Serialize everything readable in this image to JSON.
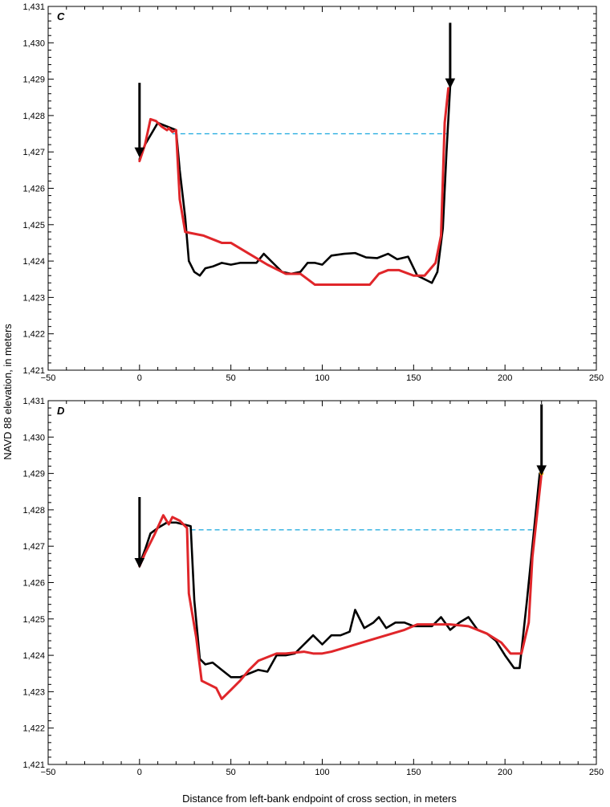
{
  "axis_titles": {
    "ylabel": "NAVD 88 elevation, in meters",
    "xlabel": "Distance from left-bank endpoint of cross section, in meters"
  },
  "colors": {
    "black_line": "#000000",
    "red_line": "#e0262a",
    "dashed_line": "#2aaee0",
    "point_marker": "#f0a500"
  },
  "chart_data": [
    {
      "type": "line",
      "panel_label": "C",
      "xlim": [
        -50,
        250
      ],
      "ylim": [
        1421,
        1431
      ],
      "x_ticks": [
        -50,
        0,
        50,
        100,
        150,
        200,
        250
      ],
      "x_tick_labels": [
        "−50",
        "0",
        "50",
        "100",
        "150",
        "200",
        "250"
      ],
      "y_ticks": [
        1421,
        1422,
        1423,
        1424,
        1425,
        1426,
        1427,
        1428,
        1429,
        1430,
        1431
      ],
      "y_tick_labels": [
        "1,421",
        "1,422",
        "1,423",
        "1,424",
        "1,425",
        "1,426",
        "1,427",
        "1,428",
        "1,429",
        "1,430",
        "1,431"
      ],
      "grid": false,
      "series": [
        {
          "color": "#000000",
          "points": [
            [
              0,
              1426.8
            ],
            [
              3,
              1427.2
            ],
            [
              10,
              1427.8
            ],
            [
              15,
              1427.7
            ],
            [
              20,
              1427.6
            ],
            [
              22,
              1426.5
            ],
            [
              25,
              1425.2
            ],
            [
              27,
              1424.0
            ],
            [
              30,
              1423.7
            ],
            [
              33,
              1423.6
            ],
            [
              36,
              1423.8
            ],
            [
              40,
              1423.85
            ],
            [
              45,
              1423.95
            ],
            [
              50,
              1423.9
            ],
            [
              55,
              1423.95
            ],
            [
              60,
              1423.95
            ],
            [
              64,
              1423.95
            ],
            [
              68,
              1424.2
            ],
            [
              73,
              1423.95
            ],
            [
              78,
              1423.7
            ],
            [
              83,
              1423.65
            ],
            [
              88,
              1423.7
            ],
            [
              92,
              1423.95
            ],
            [
              96,
              1423.95
            ],
            [
              100,
              1423.9
            ],
            [
              105,
              1424.15
            ],
            [
              112,
              1424.2
            ],
            [
              118,
              1424.22
            ],
            [
              124,
              1424.1
            ],
            [
              130,
              1424.08
            ],
            [
              136,
              1424.2
            ],
            [
              141,
              1424.05
            ],
            [
              147,
              1424.12
            ],
            [
              152,
              1423.6
            ],
            [
              158,
              1423.45
            ],
            [
              160,
              1423.4
            ],
            [
              163,
              1423.7
            ],
            [
              166,
              1424.9
            ],
            [
              168,
              1427.0
            ],
            [
              170,
              1428.8
            ]
          ]
        },
        {
          "color": "#e0262a",
          "points": [
            [
              0,
              1426.75
            ],
            [
              3,
              1427.2
            ],
            [
              6,
              1427.9
            ],
            [
              9,
              1427.85
            ],
            [
              12,
              1427.7
            ],
            [
              15,
              1427.6
            ],
            [
              16,
              1427.65
            ],
            [
              18,
              1427.55
            ],
            [
              20,
              1427.6
            ],
            [
              22,
              1425.7
            ],
            [
              25,
              1424.8
            ],
            [
              30,
              1424.75
            ],
            [
              35,
              1424.7
            ],
            [
              40,
              1424.6
            ],
            [
              45,
              1424.5
            ],
            [
              50,
              1424.5
            ],
            [
              60,
              1424.2
            ],
            [
              70,
              1423.9
            ],
            [
              80,
              1423.65
            ],
            [
              88,
              1423.65
            ],
            [
              96,
              1423.35
            ],
            [
              110,
              1423.35
            ],
            [
              126,
              1423.35
            ],
            [
              131,
              1423.65
            ],
            [
              136,
              1423.75
            ],
            [
              142,
              1423.75
            ],
            [
              150,
              1423.6
            ],
            [
              156,
              1423.6
            ],
            [
              162,
              1423.95
            ],
            [
              165,
              1424.7
            ],
            [
              167,
              1427.8
            ],
            [
              169,
              1428.75
            ]
          ]
        }
      ],
      "reference_lines": [
        {
          "style": "dashed",
          "color": "#2aaee0",
          "y": 1427.5,
          "x_range": [
            18,
            168
          ]
        }
      ],
      "arrows": [
        {
          "x": 0,
          "from_y": 1428.9,
          "to_y": 1426.9
        },
        {
          "x": 170,
          "from_y": 1430.55,
          "to_y": 1428.8
        }
      ]
    },
    {
      "type": "line",
      "panel_label": "D",
      "xlim": [
        -50,
        250
      ],
      "ylim": [
        1421,
        1431
      ],
      "x_ticks": [
        -50,
        0,
        50,
        100,
        150,
        200,
        250
      ],
      "x_tick_labels": [
        "−50",
        "0",
        "50",
        "100",
        "150",
        "200",
        "250"
      ],
      "y_ticks": [
        1421,
        1422,
        1423,
        1424,
        1425,
        1426,
        1427,
        1428,
        1429,
        1430,
        1431
      ],
      "y_tick_labels": [
        "1,421",
        "1,422",
        "1,423",
        "1,424",
        "1,425",
        "1,426",
        "1,427",
        "1,428",
        "1,429",
        "1,430",
        "1,431"
      ],
      "grid": false,
      "series": [
        {
          "color": "#000000",
          "points": [
            [
              0,
              1426.5
            ],
            [
              3,
              1426.9
            ],
            [
              6,
              1427.35
            ],
            [
              10,
              1427.5
            ],
            [
              15,
              1427.65
            ],
            [
              20,
              1427.65
            ],
            [
              28,
              1427.55
            ],
            [
              30,
              1425.5
            ],
            [
              33,
              1423.9
            ],
            [
              36,
              1423.75
            ],
            [
              40,
              1423.8
            ],
            [
              45,
              1423.6
            ],
            [
              50,
              1423.4
            ],
            [
              55,
              1423.4
            ],
            [
              60,
              1423.5
            ],
            [
              65,
              1423.6
            ],
            [
              70,
              1423.55
            ],
            [
              75,
              1424.0
            ],
            [
              80,
              1424.0
            ],
            [
              85,
              1424.05
            ],
            [
              90,
              1424.3
            ],
            [
              95,
              1424.55
            ],
            [
              100,
              1424.3
            ],
            [
              105,
              1424.55
            ],
            [
              110,
              1424.55
            ],
            [
              115,
              1424.65
            ],
            [
              118,
              1425.25
            ],
            [
              123,
              1424.75
            ],
            [
              128,
              1424.9
            ],
            [
              131,
              1425.05
            ],
            [
              135,
              1424.75
            ],
            [
              140,
              1424.9
            ],
            [
              145,
              1424.9
            ],
            [
              150,
              1424.8
            ],
            [
              155,
              1424.8
            ],
            [
              160,
              1424.8
            ],
            [
              165,
              1425.05
            ],
            [
              170,
              1424.7
            ],
            [
              175,
              1424.9
            ],
            [
              180,
              1425.05
            ],
            [
              185,
              1424.7
            ],
            [
              190,
              1424.6
            ],
            [
              195,
              1424.4
            ],
            [
              200,
              1424.0
            ],
            [
              205,
              1423.65
            ],
            [
              208,
              1423.65
            ],
            [
              212,
              1425.5
            ],
            [
              215,
              1427.0
            ],
            [
              219,
              1429.0
            ]
          ]
        },
        {
          "color": "#e0262a",
          "points": [
            [
              0,
              1426.45
            ],
            [
              3,
              1426.8
            ],
            [
              8,
              1427.3
            ],
            [
              13,
              1427.85
            ],
            [
              16,
              1427.6
            ],
            [
              18,
              1427.8
            ],
            [
              22,
              1427.7
            ],
            [
              26,
              1427.5
            ],
            [
              27,
              1425.7
            ],
            [
              31,
              1424.5
            ],
            [
              34,
              1423.3
            ],
            [
              38,
              1423.2
            ],
            [
              42,
              1423.1
            ],
            [
              45,
              1422.8
            ],
            [
              50,
              1423.05
            ],
            [
              55,
              1423.3
            ],
            [
              60,
              1423.6
            ],
            [
              65,
              1423.85
            ],
            [
              70,
              1423.95
            ],
            [
              75,
              1424.05
            ],
            [
              80,
              1424.05
            ],
            [
              90,
              1424.1
            ],
            [
              95,
              1424.05
            ],
            [
              100,
              1424.05
            ],
            [
              105,
              1424.1
            ],
            [
              115,
              1424.25
            ],
            [
              125,
              1424.4
            ],
            [
              135,
              1424.55
            ],
            [
              145,
              1424.7
            ],
            [
              152,
              1424.85
            ],
            [
              160,
              1424.85
            ],
            [
              170,
              1424.85
            ],
            [
              180,
              1424.8
            ],
            [
              190,
              1424.6
            ],
            [
              198,
              1424.35
            ],
            [
              203,
              1424.05
            ],
            [
              209,
              1424.05
            ],
            [
              213,
              1424.9
            ],
            [
              215,
              1426.7
            ],
            [
              220,
              1429.0
            ]
          ]
        }
      ],
      "reference_lines": [
        {
          "style": "dashed",
          "color": "#2aaee0",
          "y": 1427.45,
          "x_range": [
            28,
            215
          ]
        }
      ],
      "arrows": [
        {
          "x": 0,
          "from_y": 1428.35,
          "to_y": 1426.45
        },
        {
          "x": 220,
          "from_y": 1430.9,
          "to_y": 1429.0
        }
      ],
      "markers": [
        {
          "x": 220,
          "y": 1429.0,
          "color": "#f0a500"
        }
      ]
    }
  ]
}
